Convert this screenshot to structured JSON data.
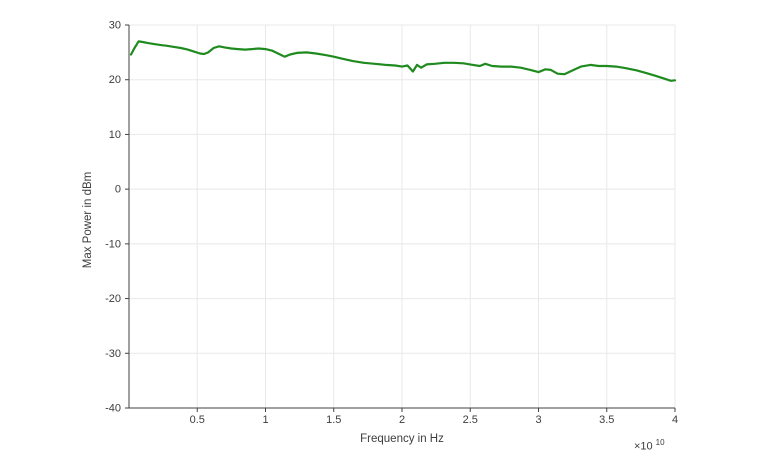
{
  "colors": {
    "background": "#ffffff",
    "axis": "#424242",
    "text": "#3d3d3d",
    "grid": "#e8e8e8"
  },
  "chart_data": {
    "type": "line",
    "title": "",
    "xlabel": "Frequency in Hz",
    "ylabel": "Max Power in dBm",
    "x_axis_multiplier": {
      "base": "×10",
      "exponent": "10"
    },
    "x_unit": "Hz × 10^10",
    "xlim": [
      0,
      4
    ],
    "ylim": [
      -40,
      30
    ],
    "grid": true,
    "legend": false,
    "xticks": [
      0.5,
      1,
      1.5,
      2,
      2.5,
      3,
      3.5,
      4
    ],
    "xtick_labels": [
      "0.5",
      "1",
      "1.5",
      "2",
      "2.5",
      "3",
      "3.5",
      "4"
    ],
    "yticks": [
      -40,
      -30,
      -20,
      -10,
      0,
      10,
      20,
      30
    ],
    "ytick_labels": [
      "-40",
      "-30",
      "-20",
      "-10",
      "0",
      "10",
      "20",
      "30"
    ],
    "series": [
      {
        "name": "Max Power",
        "color": "#1f8b1f",
        "line_width": 2.2,
        "x": [
          0.015,
          0.04,
          0.07,
          0.1,
          0.14,
          0.19,
          0.24,
          0.28,
          0.33,
          0.38,
          0.43,
          0.47,
          0.52,
          0.55,
          0.58,
          0.62,
          0.66,
          0.7,
          0.75,
          0.8,
          0.85,
          0.9,
          0.95,
          1.0,
          1.05,
          1.1,
          1.14,
          1.18,
          1.23,
          1.3,
          1.37,
          1.44,
          1.5,
          1.57,
          1.64,
          1.72,
          1.8,
          1.88,
          1.95,
          2.0,
          2.04,
          2.08,
          2.11,
          2.14,
          2.18,
          2.24,
          2.31,
          2.38,
          2.45,
          2.52,
          2.57,
          2.61,
          2.66,
          2.73,
          2.8,
          2.87,
          2.94,
          3.0,
          3.05,
          3.09,
          3.14,
          3.19,
          3.25,
          3.31,
          3.38,
          3.44,
          3.5,
          3.57,
          3.64,
          3.72,
          3.79,
          3.86,
          3.92,
          3.97,
          4.0
        ],
        "y": [
          24.6,
          25.8,
          27.0,
          26.9,
          26.7,
          26.5,
          26.3,
          26.2,
          26.0,
          25.8,
          25.5,
          25.2,
          24.8,
          24.7,
          25.0,
          25.8,
          26.1,
          25.9,
          25.7,
          25.6,
          25.5,
          25.6,
          25.7,
          25.6,
          25.3,
          24.7,
          24.2,
          24.6,
          24.9,
          25.0,
          24.8,
          24.5,
          24.2,
          23.8,
          23.4,
          23.1,
          22.9,
          22.7,
          22.6,
          22.4,
          22.6,
          21.5,
          22.7,
          22.2,
          22.8,
          22.9,
          23.1,
          23.1,
          23.0,
          22.7,
          22.5,
          22.9,
          22.5,
          22.4,
          22.4,
          22.2,
          21.8,
          21.4,
          21.9,
          21.8,
          21.1,
          21.0,
          21.7,
          22.4,
          22.7,
          22.5,
          22.5,
          22.4,
          22.1,
          21.7,
          21.2,
          20.7,
          20.2,
          19.8,
          19.9
        ]
      }
    ]
  }
}
